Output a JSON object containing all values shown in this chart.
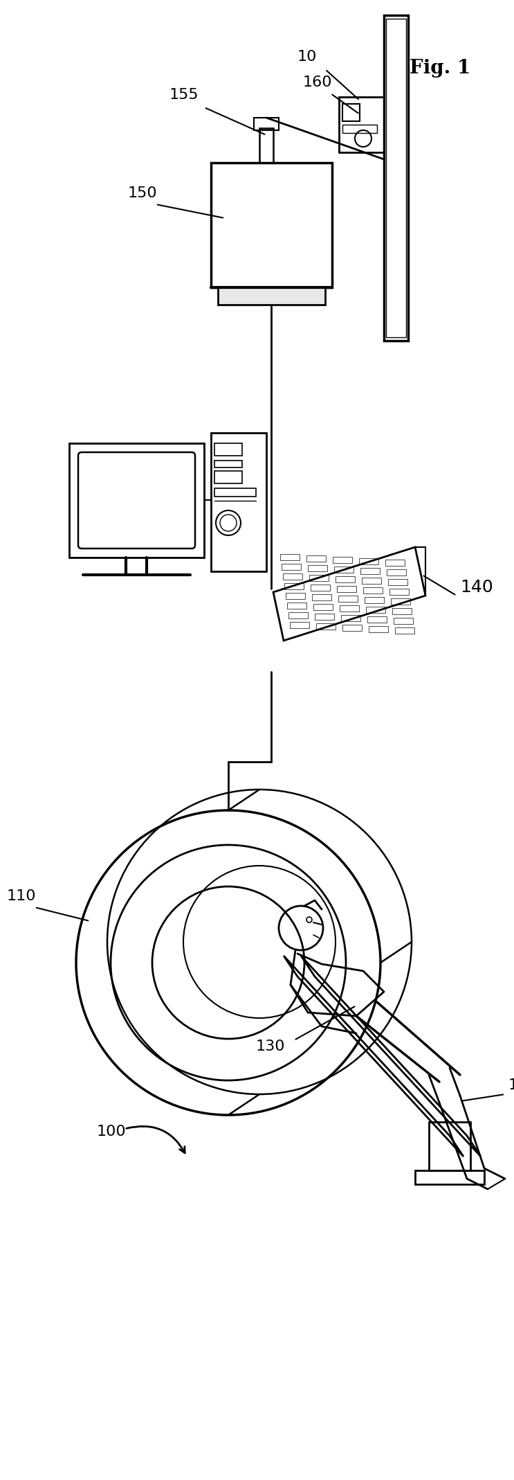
{
  "fig_width": 7.43,
  "fig_height": 21.37,
  "dpi": 100,
  "bg_color": "#ffffff",
  "line_color": "#000000"
}
